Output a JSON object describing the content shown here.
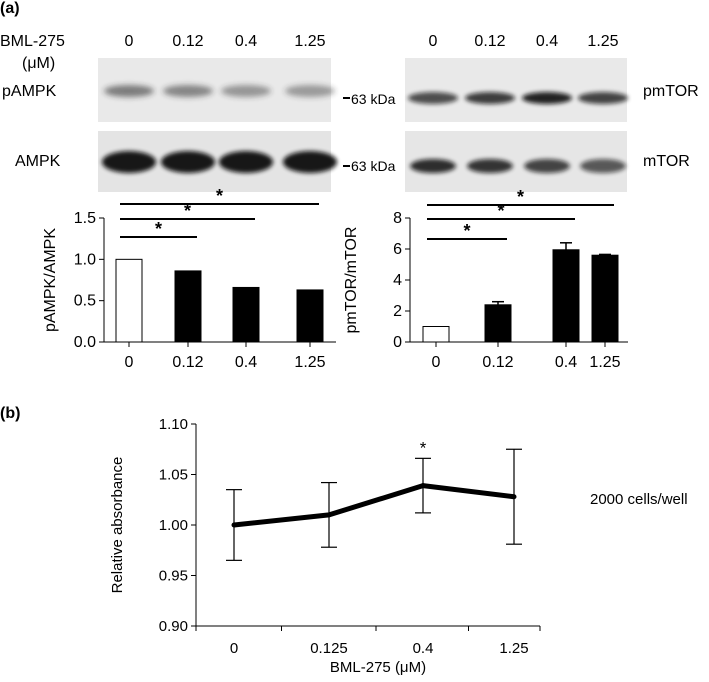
{
  "panel_a": {
    "label": "(a)",
    "conc_header": "BML-275",
    "conc_unit": "(μM)",
    "left_lanes": [
      "0",
      "0.12",
      "0.4",
      "1.25"
    ],
    "right_lanes": [
      "0",
      "0.12",
      "0.4",
      "1.25"
    ],
    "blots": {
      "pampk": "pAMPK",
      "ampk": "AMPK",
      "pmtor": "pmTOR",
      "mtor": "mTOR",
      "marker_top": "63 kDa",
      "marker_bottom": "63 kDa"
    },
    "sig_star": "*"
  },
  "panel_b": {
    "label": "(b)",
    "annotation": "2000 cells/well",
    "star": "*"
  },
  "colors": {
    "filled": "#000000",
    "open": "#ffffff",
    "line": "#000000"
  },
  "chart_data": [
    {
      "type": "bar",
      "categories": [
        "0",
        "0.12",
        "0.4",
        "1.25"
      ],
      "values": [
        1.0,
        0.86,
        0.66,
        0.63
      ],
      "fill": [
        "open",
        "filled",
        "filled",
        "filled"
      ],
      "xlabel": "",
      "ylabel": "pAMPK/AMPK",
      "ylim": [
        0,
        1.5
      ],
      "yticks": [
        "0.0",
        "0.5",
        "1.0",
        "1.5"
      ],
      "significance": [
        {
          "from": "0",
          "to": "0.12",
          "label": "*"
        },
        {
          "from": "0",
          "to": "0.4",
          "label": "*"
        },
        {
          "from": "0",
          "to": "1.25",
          "label": "*"
        }
      ]
    },
    {
      "type": "bar",
      "categories": [
        "0",
        "0.12",
        "0.4",
        "1.25"
      ],
      "values": [
        1.0,
        2.4,
        5.95,
        5.6
      ],
      "errors": [
        0,
        0.2,
        0.45,
        0.05
      ],
      "fill": [
        "open",
        "filled",
        "filled",
        "filled"
      ],
      "xlabel": "",
      "ylabel": "pmTOR/mTOR",
      "ylim": [
        0,
        8
      ],
      "yticks": [
        "0",
        "2",
        "4",
        "6",
        "8"
      ],
      "significance": [
        {
          "from": "0",
          "to": "0.12",
          "label": "*"
        },
        {
          "from": "0",
          "to": "0.4",
          "label": "*"
        },
        {
          "from": "0",
          "to": "1.25",
          "label": "*"
        }
      ]
    },
    {
      "type": "line",
      "categories": [
        "0",
        "0.125",
        "0.4",
        "1.25"
      ],
      "values": [
        1.0,
        1.01,
        1.039,
        1.028
      ],
      "errors": [
        0.035,
        0.032,
        0.027,
        0.047
      ],
      "xlabel": "BML-275 (μM)",
      "ylabel": "Relative absorbance",
      "ylim": [
        0.9,
        1.1
      ],
      "yticks": [
        "0.90",
        "0.95",
        "1.00",
        "1.05",
        "1.10"
      ],
      "grid": false
    }
  ]
}
